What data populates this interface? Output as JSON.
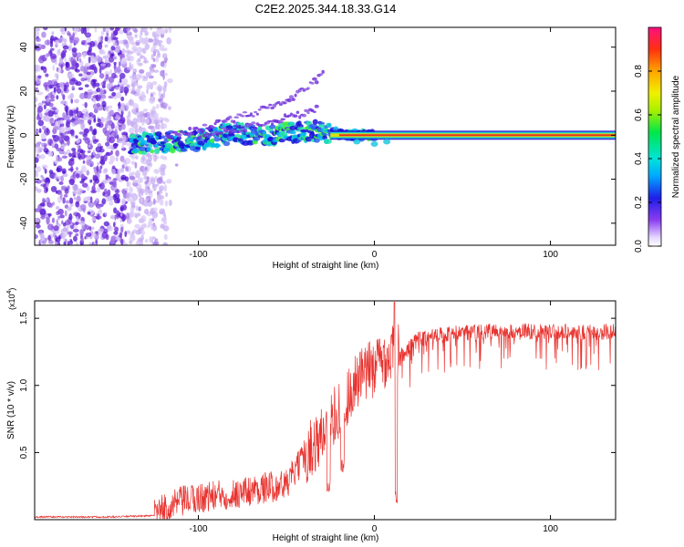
{
  "title": "C2E2.2025.344.18.33.G14",
  "chart_data": [
    {
      "type": "heatmap",
      "xlabel": "Height of straight line (km)",
      "ylabel": "Frequency (Hz)",
      "xlim": [
        -193,
        137
      ],
      "ylim": [
        -50,
        49
      ],
      "x_ticks": [
        -100,
        0,
        100
      ],
      "y_ticks": [
        -40,
        -20,
        0,
        20,
        40
      ],
      "x_tick_labels": [
        "-100",
        "0",
        "100"
      ],
      "y_tick_labels": [
        "-40",
        "-20",
        "0",
        "20",
        "40"
      ],
      "colorbar": {
        "label": "Normalized spectral amplitude",
        "range": [
          0,
          1
        ],
        "ticks": [
          0.0,
          0.2,
          0.4,
          0.6,
          0.8
        ],
        "tick_labels": [
          "0.0",
          "0.2",
          "0.4",
          "0.6",
          "0.8"
        ]
      },
      "features": {
        "noise_region_x": [
          -193,
          -118
        ],
        "main_trace": [
          [
            -138,
            -4
          ],
          [
            -120,
            -3
          ],
          [
            -100,
            -2
          ],
          [
            -80,
            1
          ],
          [
            -60,
            0
          ],
          [
            -40,
            2
          ],
          [
            -25,
            1
          ],
          [
            -10,
            0
          ],
          [
            0,
            0
          ],
          [
            137,
            0
          ]
        ],
        "upper_branch": [
          [
            -118,
            -1
          ],
          [
            -90,
            5
          ],
          [
            -65,
            11
          ],
          [
            -45,
            18
          ],
          [
            -28,
            28
          ]
        ],
        "second_branch": [
          [
            -100,
            0
          ],
          [
            -70,
            4
          ],
          [
            -50,
            8
          ],
          [
            -32,
            12
          ]
        ]
      }
    },
    {
      "type": "line",
      "xlabel": "Height of straight line (km)",
      "ylabel": "SNR (10 * v/v)",
      "exponent_label_base": "(x10",
      "exponent_label_power": "4",
      "exponent_label_end": ")",
      "xlim": [
        -193,
        137
      ],
      "ylim": [
        0,
        1.63
      ],
      "x_ticks": [
        -100,
        0,
        100
      ],
      "y_ticks": [
        0.5,
        1.0,
        1.5
      ],
      "x_tick_labels": [
        "-100",
        "0",
        "100"
      ],
      "y_tick_labels": [
        "0.5",
        "1.0",
        "1.5"
      ],
      "color": "#e8322e",
      "series_envelope": [
        [
          -193,
          0.02
        ],
        [
          -150,
          0.02
        ],
        [
          -125,
          0.03
        ],
        [
          -110,
          0.12
        ],
        [
          -95,
          0.16
        ],
        [
          -80,
          0.18
        ],
        [
          -65,
          0.22
        ],
        [
          -50,
          0.25
        ],
        [
          -40,
          0.45
        ],
        [
          -30,
          0.6
        ],
        [
          -20,
          0.8
        ],
        [
          -10,
          1.0
        ],
        [
          0,
          1.12
        ],
        [
          8,
          1.2
        ],
        [
          15,
          1.28
        ],
        [
          25,
          1.4
        ],
        [
          40,
          1.44
        ],
        [
          60,
          1.46
        ],
        [
          100,
          1.46
        ],
        [
          137,
          1.46
        ]
      ],
      "dips": [
        [
          12,
          0.12
        ],
        [
          -26,
          0.2
        ],
        [
          -18,
          0.35
        ]
      ],
      "peak": [
        12,
        1.62
      ]
    }
  ],
  "colors": {
    "heat_low": "#e2d6f8",
    "heat_mid": "#5a17d8",
    "snr_line": "#e8322e"
  }
}
